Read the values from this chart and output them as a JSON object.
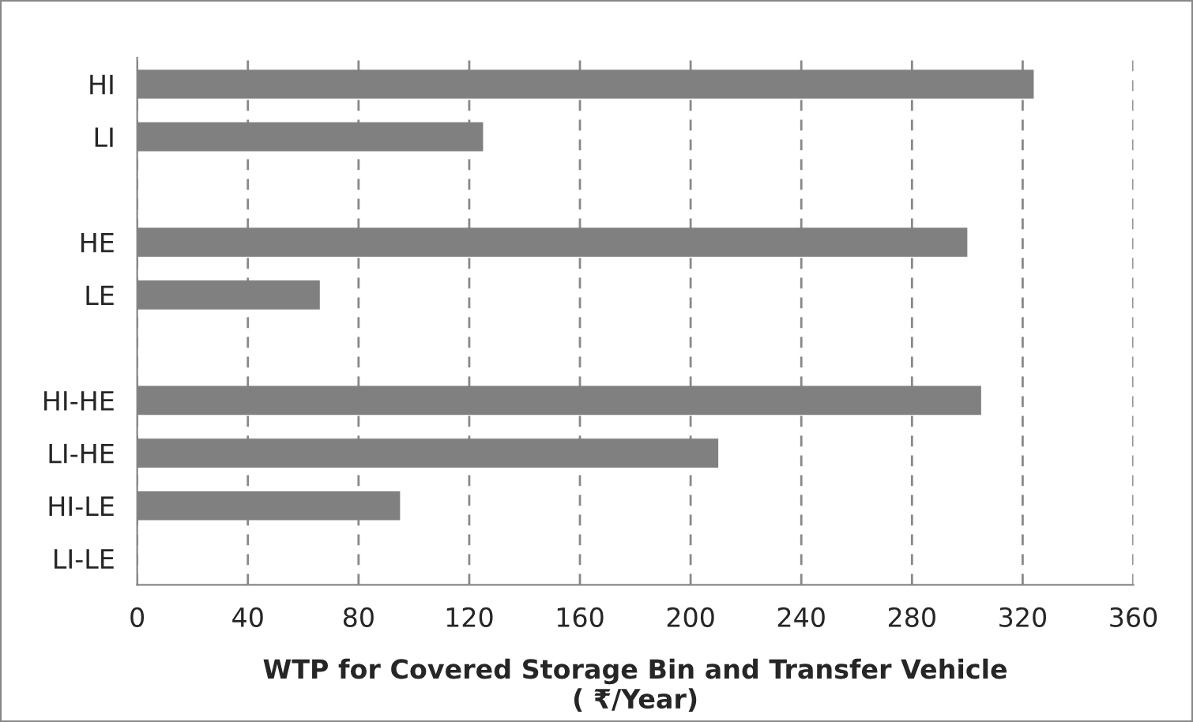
{
  "chart_data": {
    "type": "bar",
    "orientation": "horizontal",
    "categories": [
      "HI",
      "LI",
      null,
      "HE",
      "LE",
      null,
      "HI-HE",
      "LI-HE",
      "HI-LE",
      "LI-LE"
    ],
    "values": [
      324,
      125,
      null,
      300,
      66,
      null,
      305,
      210,
      95,
      0
    ],
    "color": "#808080",
    "xlabel": "WTP for Covered Storage Bin and Transfer Vehicle\n( ₹/Year)",
    "xlim": [
      0,
      360
    ],
    "xticks": [
      0,
      40,
      80,
      120,
      160,
      200,
      240,
      280,
      320,
      360
    ],
    "grid": "x",
    "legend": false
  }
}
